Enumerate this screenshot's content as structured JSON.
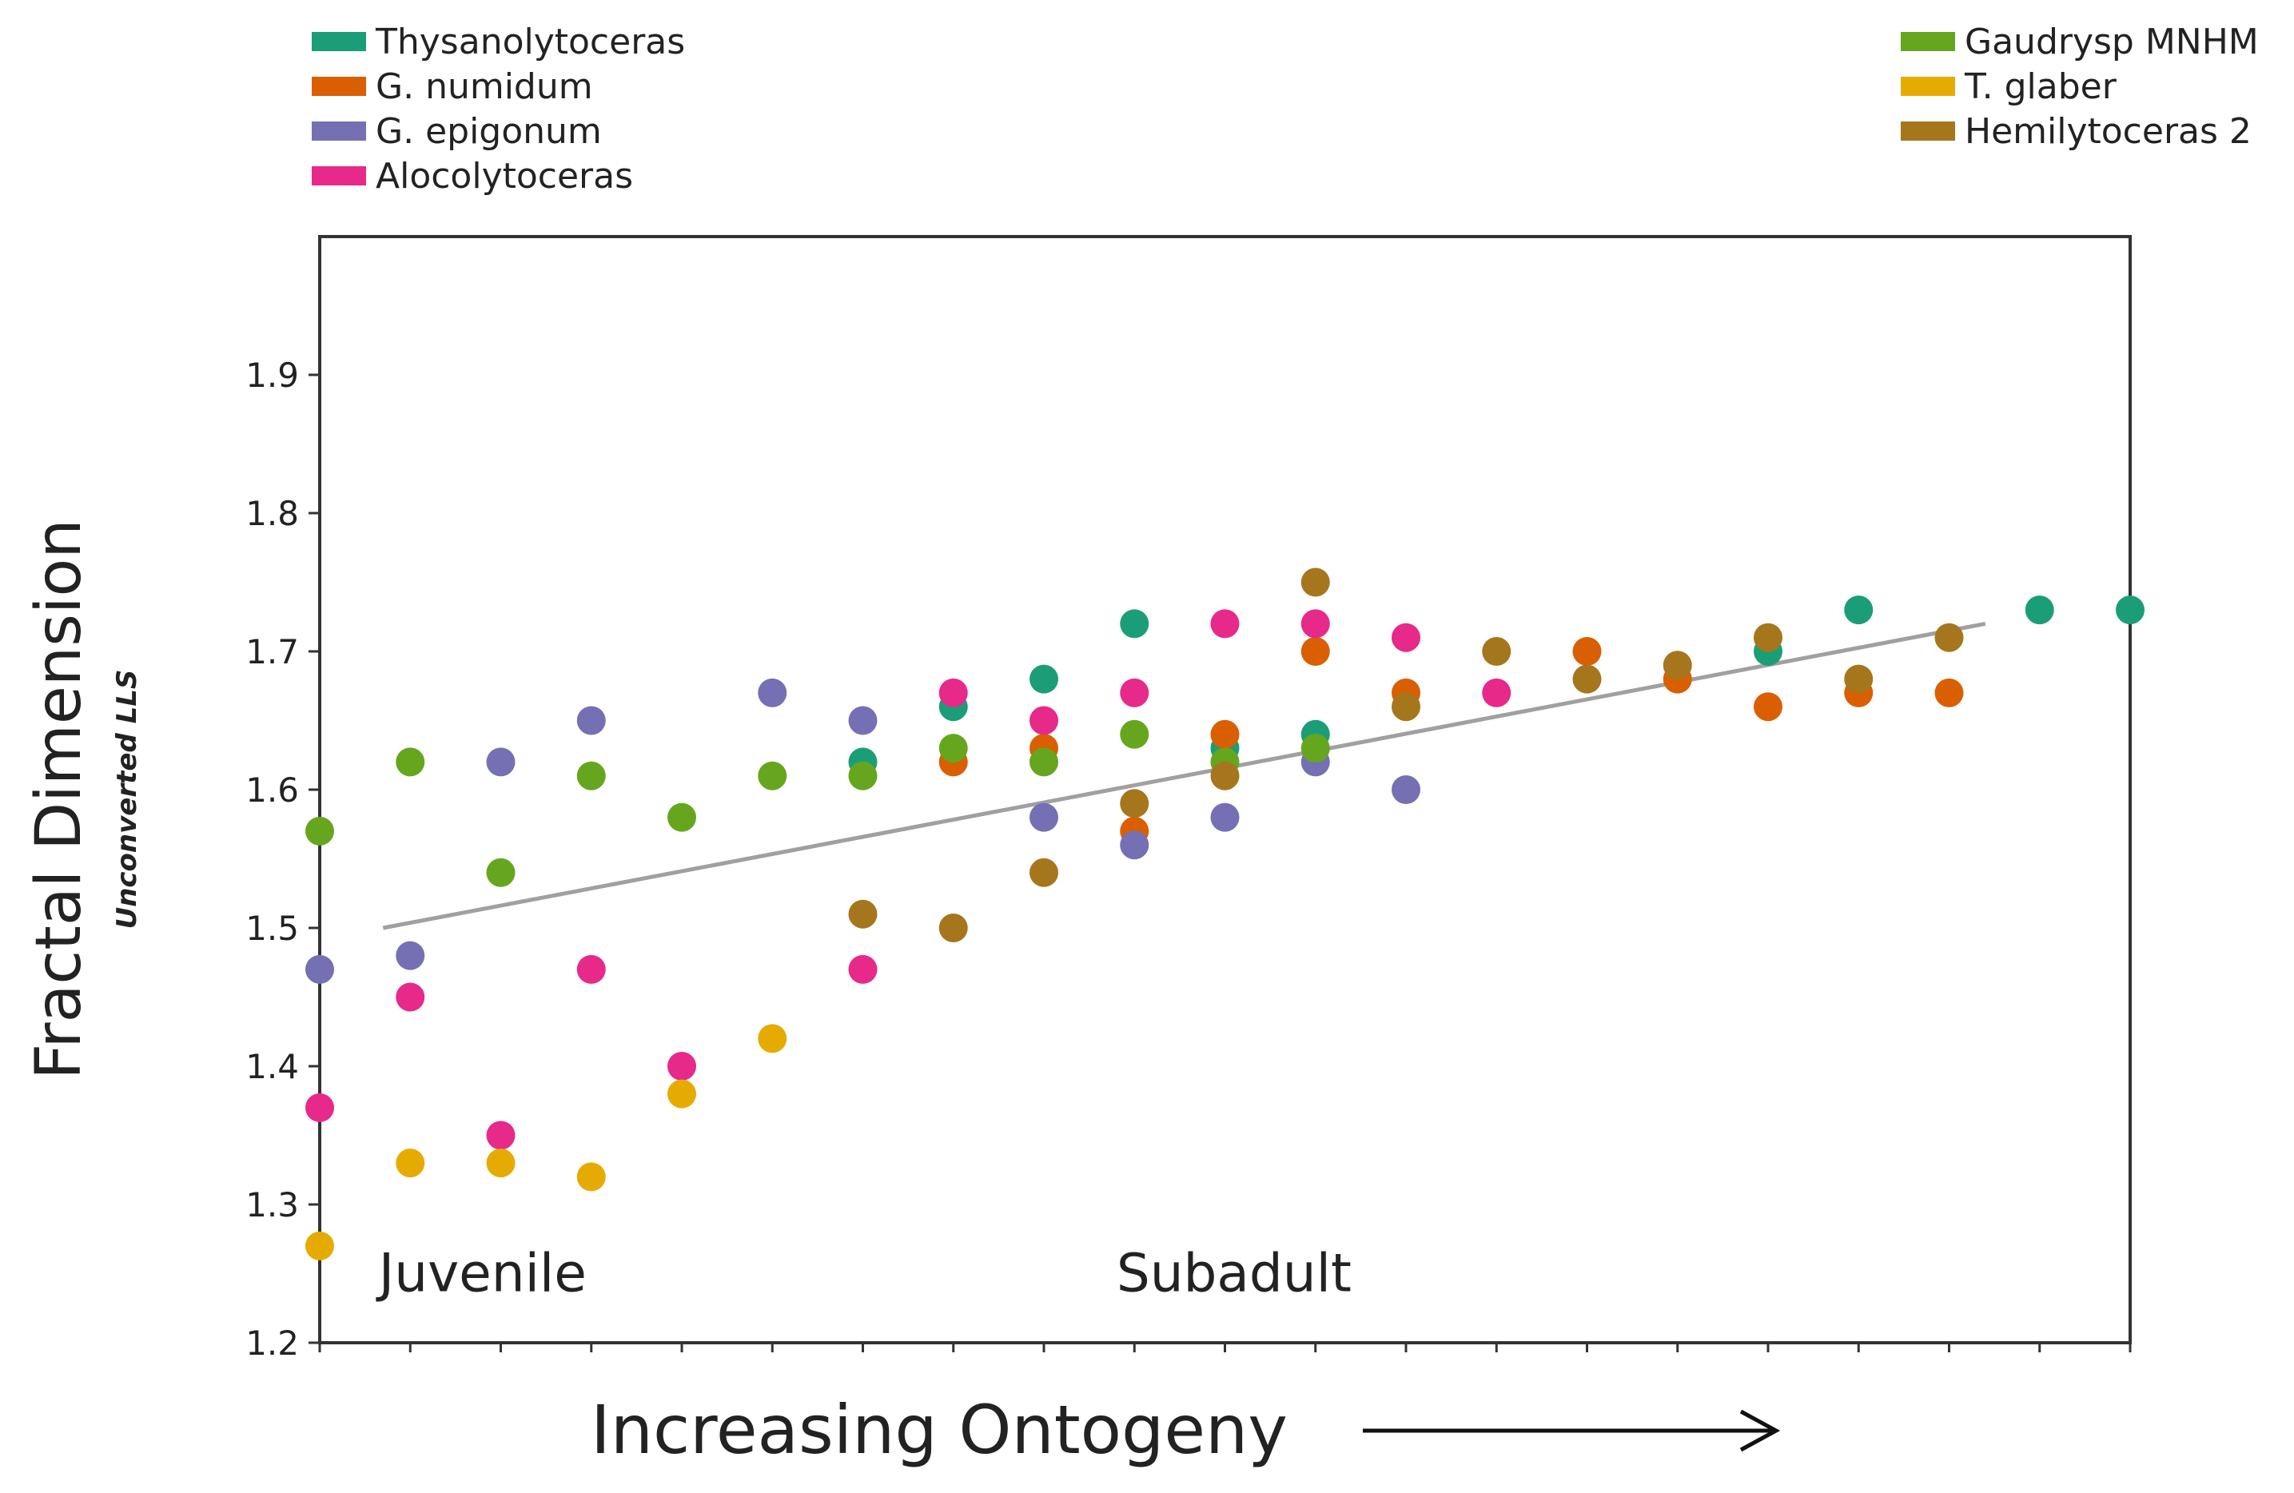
{
  "chart_data": {
    "type": "scatter",
    "title": "",
    "xlabel": "Increasing Ontogeny",
    "ylabel": "Fractal Dimension",
    "ylabel_sub": "Unconverted LLS",
    "xlim": [
      0,
      20
    ],
    "ylim": [
      1.2,
      2.0
    ],
    "grid": false,
    "y_ticks": [
      1.2,
      1.3,
      1.4,
      1.5,
      1.6,
      1.7,
      1.8,
      1.9
    ],
    "y_tick_labels": [
      "1.2",
      "1.3",
      "1.4",
      "1.5",
      "1.6",
      "1.7",
      "1.8",
      "1.9"
    ],
    "x_ticks": [
      0,
      1,
      2,
      3,
      4,
      5,
      6,
      7,
      8,
      9,
      10,
      11,
      12,
      13,
      14,
      15,
      16,
      17,
      18,
      19,
      20
    ],
    "annotations": [
      {
        "text": "Juvenile",
        "x": 1.8,
        "y": 1.25
      },
      {
        "text": "Subadult",
        "x": 10.1,
        "y": 1.25
      }
    ],
    "trendline": {
      "x": [
        0.7,
        18.4
      ],
      "y": [
        1.5,
        1.72
      ],
      "color": "#a0a0a0"
    },
    "series": [
      {
        "name": "Thysanolytoceras",
        "color": "#1b9e77",
        "points": [
          [
            6,
            1.62
          ],
          [
            7,
            1.66
          ],
          [
            8,
            1.68
          ],
          [
            9,
            1.72
          ],
          [
            10,
            1.63
          ],
          [
            11,
            1.64
          ],
          [
            16,
            1.7
          ],
          [
            17,
            1.73
          ],
          [
            19,
            1.73
          ],
          [
            20,
            1.73
          ]
        ]
      },
      {
        "name": "G. numidum",
        "color": "#d95f02",
        "points": [
          [
            7,
            1.62
          ],
          [
            8,
            1.63
          ],
          [
            9,
            1.57
          ],
          [
            10,
            1.64
          ],
          [
            11,
            1.7
          ],
          [
            12,
            1.67
          ],
          [
            14,
            1.7
          ],
          [
            15,
            1.68
          ],
          [
            16,
            1.66
          ],
          [
            17,
            1.67
          ],
          [
            18,
            1.67
          ]
        ]
      },
      {
        "name": "G. epigonum",
        "color": "#7570b3",
        "points": [
          [
            0,
            1.47
          ],
          [
            1,
            1.48
          ],
          [
            2,
            1.62
          ],
          [
            3,
            1.65
          ],
          [
            5,
            1.67
          ],
          [
            6,
            1.65
          ],
          [
            8,
            1.58
          ],
          [
            9,
            1.56
          ],
          [
            10,
            1.58
          ],
          [
            11,
            1.62
          ],
          [
            12,
            1.6
          ]
        ]
      },
      {
        "name": "Alocolytoceras",
        "color": "#e7298a",
        "points": [
          [
            0,
            1.37
          ],
          [
            1,
            1.45
          ],
          [
            2,
            1.35
          ],
          [
            3,
            1.47
          ],
          [
            4,
            1.4
          ],
          [
            6,
            1.47
          ],
          [
            7,
            1.67
          ],
          [
            8,
            1.65
          ],
          [
            9,
            1.67
          ],
          [
            10,
            1.72
          ],
          [
            11,
            1.72
          ],
          [
            12,
            1.71
          ],
          [
            13,
            1.67
          ]
        ]
      },
      {
        "name": "Gaudrysp MNHM",
        "color": "#66a61e",
        "points": [
          [
            0,
            1.57
          ],
          [
            1,
            1.62
          ],
          [
            2,
            1.54
          ],
          [
            3,
            1.61
          ],
          [
            4,
            1.58
          ],
          [
            5,
            1.61
          ],
          [
            6,
            1.61
          ],
          [
            7,
            1.63
          ],
          [
            8,
            1.62
          ],
          [
            9,
            1.64
          ],
          [
            10,
            1.62
          ],
          [
            11,
            1.63
          ]
        ]
      },
      {
        "name": "T. glaber",
        "color": "#e6ab02",
        "points": [
          [
            0,
            1.27
          ],
          [
            1,
            1.33
          ],
          [
            2,
            1.33
          ],
          [
            3,
            1.32
          ],
          [
            4,
            1.38
          ],
          [
            5,
            1.42
          ]
        ]
      },
      {
        "name": "Hemilytoceras 2",
        "color": "#a6761d",
        "points": [
          [
            6,
            1.51
          ],
          [
            7,
            1.5
          ],
          [
            8,
            1.54
          ],
          [
            9,
            1.59
          ],
          [
            10,
            1.61
          ],
          [
            11,
            1.75
          ],
          [
            12,
            1.66
          ],
          [
            13,
            1.7
          ],
          [
            14,
            1.68
          ],
          [
            15,
            1.69
          ],
          [
            16,
            1.71
          ],
          [
            17,
            1.68
          ],
          [
            18,
            1.71
          ]
        ]
      }
    ]
  }
}
